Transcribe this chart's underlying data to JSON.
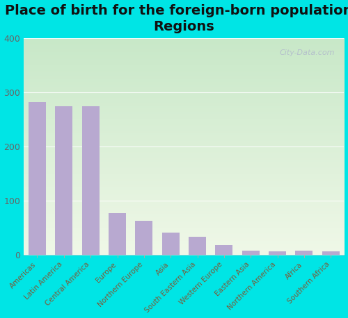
{
  "title": "Place of birth for the foreign-born population -\nRegions",
  "categories": [
    "Americas",
    "Latin America",
    "Central America",
    "Europe",
    "Northern Europe",
    "Asia",
    "South Eastern Asia",
    "Western Europe",
    "Eastern Asia",
    "Northern America",
    "Africa",
    "Southern Africa"
  ],
  "values": [
    282,
    274,
    274,
    76,
    63,
    40,
    33,
    17,
    7,
    6,
    7,
    6
  ],
  "bar_color": "#b8a9d0",
  "background_outer": "#00e5e5",
  "background_inner_top_left": "#c8e8c8",
  "background_inner_bottom_right": "#f0f8e8",
  "grid_color": "#e0e8d8",
  "ylim": [
    0,
    400
  ],
  "yticks": [
    0,
    100,
    200,
    300,
    400
  ],
  "title_fontsize": 14,
  "tick_label_fontsize": 7.5,
  "ytick_fontsize": 9,
  "watermark": "City-Data.com"
}
